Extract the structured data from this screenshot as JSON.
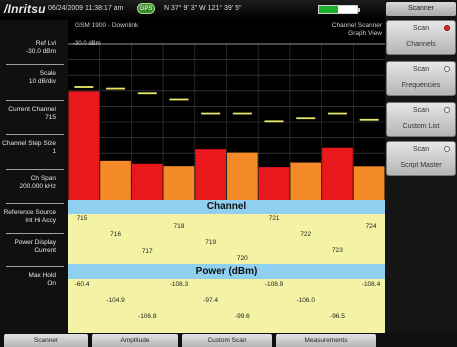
{
  "header": {
    "logo": "/Inritsu",
    "datetime": "06/24/2009 11:38:17 am",
    "gps_badge": "GPS",
    "coords": "N 37° 9' 3\" W 121° 39' 5\"",
    "battery_level": 0.5
  },
  "chart_header": {
    "mode": "GSM 1900 - Downlink",
    "title_line1": "Channel Scanner",
    "title_line2": "Graph View",
    "ref_tick": "-30.0 dBm"
  },
  "left_panel": [
    {
      "label": "Ref Lvl",
      "value": "-30.0 dBm"
    },
    {
      "label": "Scale",
      "value": "10 dB/div"
    },
    {
      "label": "Current Channel",
      "value": "715"
    },
    {
      "label": "Channel Step Size",
      "value": "1"
    },
    {
      "label": "Ch Span",
      "value": "200.000 kHz"
    },
    {
      "label": "Reference Source",
      "value": "Int Hi Accy"
    },
    {
      "label": "Power Display",
      "value": "Current"
    },
    {
      "label": "Max Hold",
      "value": "On"
    }
  ],
  "chart_data": {
    "type": "bar",
    "categories": [
      "715",
      "716",
      "717",
      "718",
      "719",
      "720",
      "721",
      "722",
      "723",
      "724"
    ],
    "values": [
      -60.4,
      -104.9,
      -106.8,
      -108.3,
      -97.4,
      -99.6,
      -108.9,
      -106.0,
      -96.5,
      -108.4
    ],
    "max_hold": [
      -57,
      -58,
      -61,
      -65,
      -74,
      -74,
      -79,
      -77,
      -74,
      -78
    ],
    "colors": [
      "#e8181c",
      "#f48a28",
      "#e8181c",
      "#f48a28",
      "#e8181c",
      "#f48a28",
      "#e8181c",
      "#f48a28",
      "#e8181c",
      "#f48a28"
    ],
    "marker_color": "#e9e86a",
    "ref_level": -30,
    "scale_db_per_div": 10,
    "ylim": [
      -130,
      -30
    ],
    "grid": true
  },
  "channel_panel": {
    "title": "Channel",
    "cells": [
      "715",
      "716",
      "717",
      "718",
      "719",
      "720",
      "721",
      "722",
      "723",
      "724"
    ]
  },
  "power_panel": {
    "title": "Power (dBm)",
    "cells": [
      "-60.4",
      "-104.9",
      "-106.8",
      "-108.3",
      "-97.4",
      "-99.6",
      "-108.9",
      "-106.0",
      "-96.5",
      "-108.4"
    ]
  },
  "soft_keys": {
    "title": "Scanner",
    "keys": [
      {
        "top": "Scan",
        "bottom": "Channels",
        "active": true
      },
      {
        "top": "Scan",
        "bottom": "Frequencies",
        "active": false
      },
      {
        "top": "Scan",
        "bottom": "Custom List",
        "active": false
      },
      {
        "top": "Scan",
        "bottom": "Script Master",
        "active": false
      }
    ]
  },
  "tabs": [
    "Scanner",
    "Amplitude",
    "Custom Scan",
    "Measurements"
  ]
}
